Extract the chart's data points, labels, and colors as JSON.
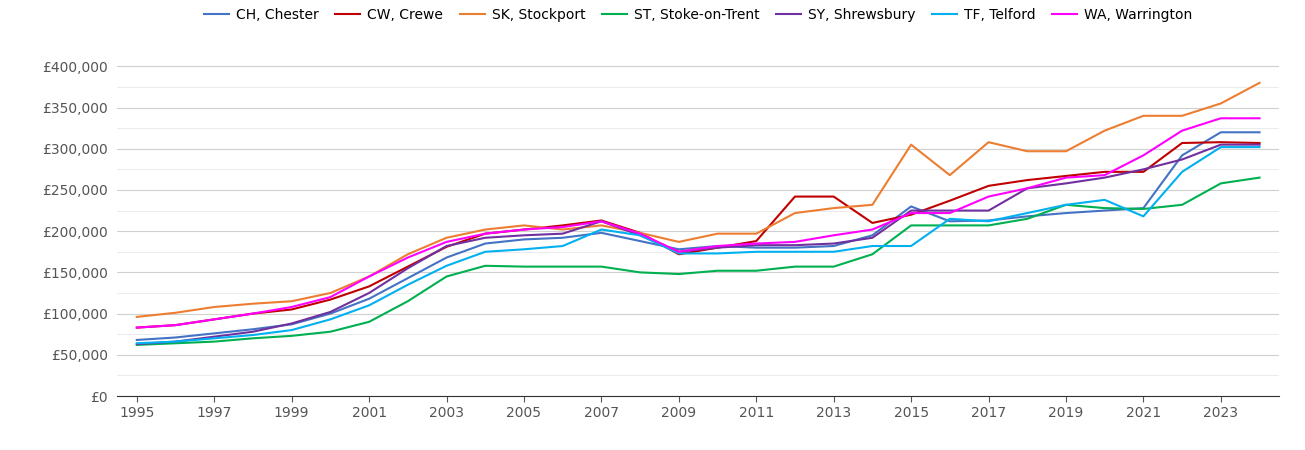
{
  "title": "",
  "background_color": "#ffffff",
  "grid_color": "#d0d0d0",
  "series": {
    "CH, Chester": {
      "color": "#4472c4",
      "values": {
        "1995": 68000,
        "1996": 71000,
        "1997": 76000,
        "1998": 81000,
        "1999": 87000,
        "2000": 100000,
        "2001": 118000,
        "2002": 143000,
        "2003": 168000,
        "2004": 185000,
        "2005": 190000,
        "2006": 192000,
        "2007": 198000,
        "2008": 188000,
        "2009": 178000,
        "2010": 182000,
        "2011": 180000,
        "2012": 180000,
        "2013": 182000,
        "2014": 195000,
        "2015": 230000,
        "2016": 212000,
        "2017": 213000,
        "2018": 218000,
        "2019": 222000,
        "2020": 225000,
        "2021": 228000,
        "2022": 292000,
        "2023": 320000,
        "2024": 320000
      }
    },
    "CW, Crewe": {
      "color": "#c00000",
      "values": {
        "1995": 83000,
        "1996": 86000,
        "1997": 93000,
        "1998": 100000,
        "1999": 105000,
        "2000": 117000,
        "2001": 133000,
        "2002": 157000,
        "2003": 181000,
        "2004": 197000,
        "2005": 202000,
        "2006": 207000,
        "2007": 213000,
        "2008": 198000,
        "2009": 172000,
        "2010": 180000,
        "2011": 188000,
        "2012": 242000,
        "2013": 242000,
        "2014": 210000,
        "2015": 220000,
        "2016": 237000,
        "2017": 255000,
        "2018": 262000,
        "2019": 267000,
        "2020": 272000,
        "2021": 272000,
        "2022": 307000,
        "2023": 308000,
        "2024": 307000
      }
    },
    "SK, Stockport": {
      "color": "#ed7d31",
      "values": {
        "1995": 96000,
        "1996": 101000,
        "1997": 108000,
        "1998": 112000,
        "1999": 115000,
        "2000": 125000,
        "2001": 145000,
        "2002": 172000,
        "2003": 192000,
        "2004": 202000,
        "2005": 207000,
        "2006": 202000,
        "2007": 207000,
        "2008": 198000,
        "2009": 187000,
        "2010": 197000,
        "2011": 197000,
        "2012": 222000,
        "2013": 228000,
        "2014": 232000,
        "2015": 305000,
        "2016": 268000,
        "2017": 308000,
        "2018": 297000,
        "2019": 297000,
        "2020": 322000,
        "2021": 340000,
        "2022": 340000,
        "2023": 355000,
        "2024": 380000
      }
    },
    "ST, Stoke-on-Trent": {
      "color": "#00b050",
      "values": {
        "1995": 62000,
        "1996": 64000,
        "1997": 66000,
        "1998": 70000,
        "1999": 73000,
        "2000": 78000,
        "2001": 90000,
        "2002": 115000,
        "2003": 145000,
        "2004": 158000,
        "2005": 157000,
        "2006": 157000,
        "2007": 157000,
        "2008": 150000,
        "2009": 148000,
        "2010": 152000,
        "2011": 152000,
        "2012": 157000,
        "2013": 157000,
        "2014": 172000,
        "2015": 207000,
        "2016": 207000,
        "2017": 207000,
        "2018": 215000,
        "2019": 232000,
        "2020": 228000,
        "2021": 227000,
        "2022": 232000,
        "2023": 258000,
        "2024": 265000
      }
    },
    "SY, Shrewsbury": {
      "color": "#7030a0",
      "values": {
        "1995": 63000,
        "1996": 66000,
        "1997": 72000,
        "1998": 78000,
        "1999": 88000,
        "2000": 102000,
        "2001": 125000,
        "2002": 155000,
        "2003": 182000,
        "2004": 192000,
        "2005": 195000,
        "2006": 197000,
        "2007": 212000,
        "2008": 195000,
        "2009": 175000,
        "2010": 180000,
        "2011": 183000,
        "2012": 183000,
        "2013": 185000,
        "2014": 192000,
        "2015": 225000,
        "2016": 225000,
        "2017": 225000,
        "2018": 252000,
        "2019": 258000,
        "2020": 265000,
        "2021": 275000,
        "2022": 287000,
        "2023": 305000,
        "2024": 305000
      }
    },
    "TF, Telford": {
      "color": "#00b0f0",
      "values": {
        "1995": 64000,
        "1996": 66000,
        "1997": 70000,
        "1998": 74000,
        "1999": 80000,
        "2000": 93000,
        "2001": 110000,
        "2002": 135000,
        "2003": 158000,
        "2004": 175000,
        "2005": 178000,
        "2006": 182000,
        "2007": 202000,
        "2008": 195000,
        "2009": 173000,
        "2010": 173000,
        "2011": 175000,
        "2012": 175000,
        "2013": 175000,
        "2014": 182000,
        "2015": 182000,
        "2016": 215000,
        "2017": 212000,
        "2018": 222000,
        "2019": 232000,
        "2020": 238000,
        "2021": 218000,
        "2022": 272000,
        "2023": 302000,
        "2024": 302000
      }
    },
    "WA, Warrington": {
      "color": "#ff00ff",
      "values": {
        "1995": 83000,
        "1996": 86000,
        "1997": 93000,
        "1998": 100000,
        "1999": 108000,
        "2000": 120000,
        "2001": 145000,
        "2002": 168000,
        "2003": 187000,
        "2004": 197000,
        "2005": 202000,
        "2006": 205000,
        "2007": 212000,
        "2008": 197000,
        "2009": 175000,
        "2010": 182000,
        "2011": 185000,
        "2012": 187000,
        "2013": 195000,
        "2014": 202000,
        "2015": 222000,
        "2016": 222000,
        "2017": 242000,
        "2018": 252000,
        "2019": 265000,
        "2020": 268000,
        "2021": 292000,
        "2022": 322000,
        "2023": 337000,
        "2024": 337000
      }
    }
  },
  "xticks": [
    1995,
    1997,
    1999,
    2001,
    2003,
    2005,
    2007,
    2009,
    2011,
    2013,
    2015,
    2017,
    2019,
    2021,
    2023
  ],
  "yticks": [
    0,
    50000,
    100000,
    150000,
    200000,
    250000,
    300000,
    350000,
    400000
  ],
  "minor_yticks": [
    25000,
    75000,
    125000,
    175000,
    225000,
    275000,
    325000,
    375000
  ],
  "ylim": [
    0,
    415000
  ],
  "xlim": [
    1994.5,
    2024.5
  ]
}
